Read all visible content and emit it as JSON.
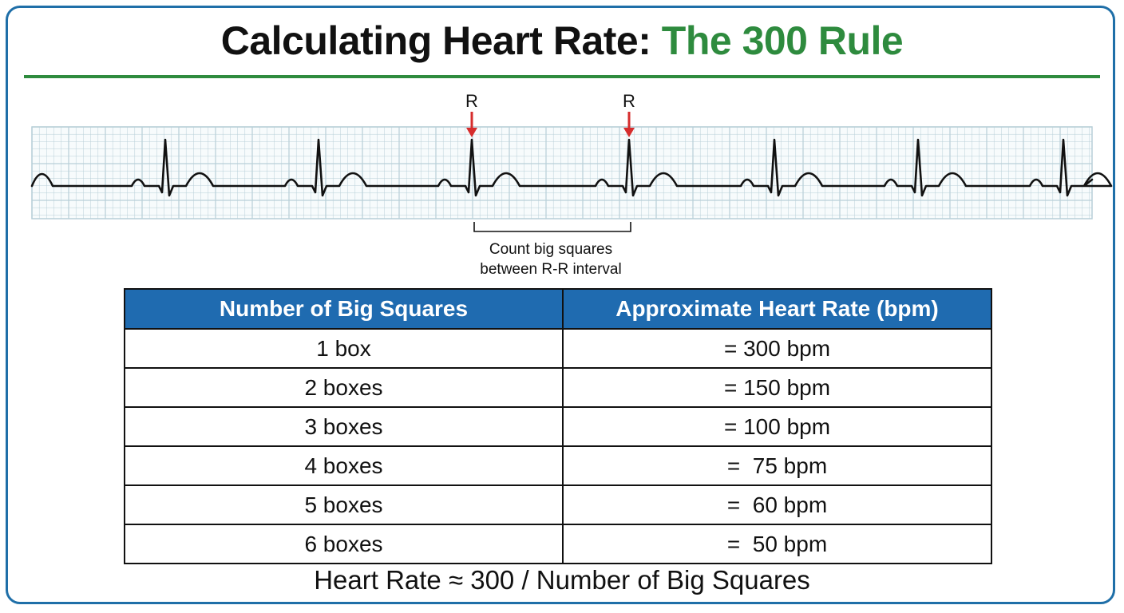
{
  "title": {
    "main": "Calculating Heart Rate:",
    "accent": "The 300 Rule"
  },
  "colors": {
    "accent_green": "#2e8b3e",
    "header_blue": "#1f6bb0",
    "frame_blue": "#1f6fa8",
    "marker_red": "#d62d2d",
    "grid": "#b8cfd8"
  },
  "ecg": {
    "peak_markers": [
      "R",
      "R"
    ],
    "caption_line1": "Count big squares",
    "caption_line2": "between R-R interval"
  },
  "table": {
    "headers": [
      "Number of Big Squares",
      "Approximate Heart Rate (bpm)"
    ],
    "rows": [
      [
        "1 box",
        "= 300 bpm"
      ],
      [
        "2 boxes",
        "= 150 bpm"
      ],
      [
        "3 boxes",
        "= 100 bpm"
      ],
      [
        "4 boxes",
        "=  75 bpm"
      ],
      [
        "5 boxes",
        "=  60 bpm"
      ],
      [
        "6 boxes",
        "=  50 bpm"
      ]
    ]
  },
  "formula": "Heart Rate ≈ 300 / Number of Big Squares"
}
